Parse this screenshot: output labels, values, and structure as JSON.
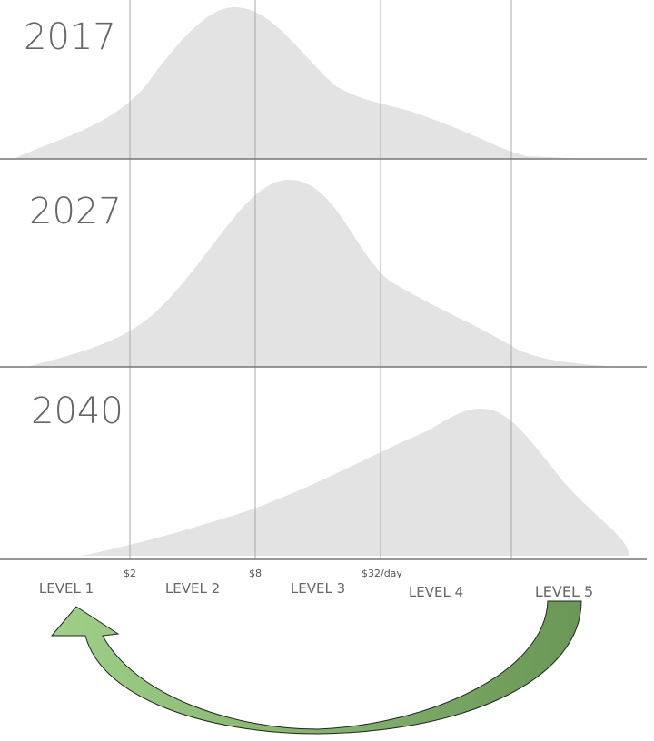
{
  "panels": [
    {
      "year": "2017"
    },
    {
      "year": "2027"
    },
    {
      "year": "2040"
    }
  ],
  "x_axis": {
    "ticks": [
      "$2",
      "$8",
      "$32/day"
    ]
  },
  "levels": [
    "LEVEL 1",
    "LEVEL 2",
    "LEVEL 3",
    "LEVEL 4",
    "LEVEL 5"
  ]
}
